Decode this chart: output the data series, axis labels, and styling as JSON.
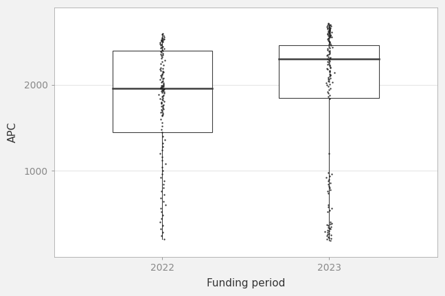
{
  "title": "",
  "xlabel": "Funding period",
  "ylabel": "APC",
  "categories": [
    "2022",
    "2023"
  ],
  "box2022": {
    "q1": 1450,
    "median": 1960,
    "q3": 2400,
    "whisker_low": 200,
    "whisker_high": 2600
  },
  "box2023": {
    "q1": 1850,
    "median": 2300,
    "q3": 2460,
    "whisker_low": 190,
    "whisker_high": 2720
  },
  "dots2022": [
    2600,
    2590,
    2575,
    2560,
    2550,
    2540,
    2535,
    2530,
    2525,
    2520,
    2515,
    2510,
    2500,
    2490,
    2480,
    2470,
    2460,
    2450,
    2440,
    2430,
    2420,
    2410,
    2400,
    2390,
    2380,
    2370,
    2360,
    2350,
    2340,
    2330,
    2310,
    2290,
    2270,
    2250,
    2230,
    2200,
    2190,
    2180,
    2170,
    2160,
    2150,
    2140,
    2130,
    2120,
    2110,
    2100,
    2090,
    2080,
    2070,
    2060,
    2050,
    2040,
    2030,
    2020,
    2010,
    2000,
    1995,
    1990,
    1985,
    1980,
    1975,
    1970,
    1965,
    1960,
    1955,
    1950,
    1945,
    1940,
    1935,
    1930,
    1925,
    1920,
    1910,
    1900,
    1890,
    1880,
    1870,
    1860,
    1850,
    1840,
    1830,
    1820,
    1810,
    1800,
    1790,
    1780,
    1770,
    1760,
    1750,
    1740,
    1730,
    1720,
    1710,
    1700,
    1690,
    1680,
    1670,
    1660,
    1650,
    1640,
    1600,
    1560,
    1520,
    1480,
    1450,
    1400,
    1360,
    1320,
    1280,
    1240,
    1200,
    1160,
    1120,
    1080,
    1040,
    1000,
    960,
    920,
    880,
    840,
    800,
    760,
    720,
    680,
    640,
    600,
    560,
    520,
    480,
    440,
    400,
    360,
    320,
    280,
    240,
    200
  ],
  "dots2023": [
    2720,
    2710,
    2700,
    2695,
    2690,
    2685,
    2680,
    2675,
    2670,
    2665,
    2660,
    2655,
    2650,
    2645,
    2640,
    2635,
    2630,
    2625,
    2620,
    2615,
    2610,
    2605,
    2600,
    2595,
    2590,
    2585,
    2580,
    2575,
    2570,
    2565,
    2560,
    2555,
    2550,
    2540,
    2530,
    2520,
    2510,
    2500,
    2490,
    2480,
    2470,
    2460,
    2450,
    2440,
    2430,
    2420,
    2410,
    2400,
    2390,
    2380,
    2370,
    2360,
    2350,
    2340,
    2330,
    2320,
    2310,
    2300,
    2290,
    2280,
    2270,
    2260,
    2250,
    2240,
    2230,
    2220,
    2210,
    2200,
    2190,
    2180,
    2170,
    2160,
    2150,
    2140,
    2130,
    2120,
    2110,
    2100,
    2090,
    2080,
    2070,
    2060,
    2050,
    2040,
    2030,
    2020,
    2010,
    2000,
    1980,
    1960,
    1940,
    1920,
    1900,
    1880,
    1860,
    1840,
    1200,
    980,
    960,
    940,
    920,
    900,
    880,
    860,
    840,
    820,
    800,
    780,
    760,
    740,
    600,
    580,
    560,
    540,
    520,
    400,
    390,
    380,
    370,
    360,
    350,
    340,
    330,
    320,
    310,
    300,
    290,
    280,
    270,
    260,
    250,
    240,
    230,
    220,
    210,
    200,
    190
  ],
  "bg_color": "#ffffff",
  "grid_color": "#e5e5e5",
  "box_color": "#3d3d3d",
  "dot_color": "#1a1a1a",
  "ylim": [
    0,
    2900
  ],
  "yticks": [
    1000,
    2000
  ],
  "box_width": 0.6,
  "dot_size": 3,
  "dot_alpha": 0.85,
  "jitter_std": 0.008
}
